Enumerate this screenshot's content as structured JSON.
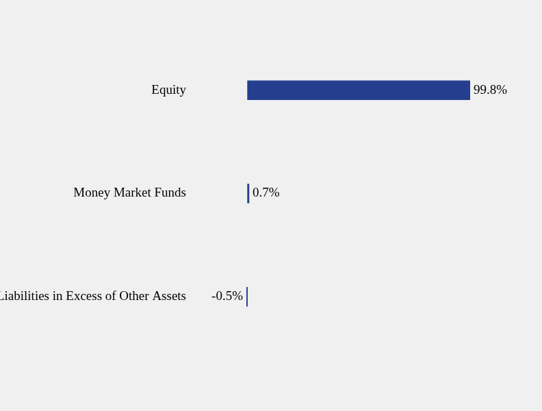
{
  "chart_data": {
    "type": "bar",
    "orientation": "horizontal",
    "categories": [
      "Equity",
      "Money Market Funds",
      "Liabilities in Excess of Other Assets"
    ],
    "values": [
      99.8,
      0.7,
      -0.5
    ],
    "value_labels": [
      "99.8%",
      "0.7%",
      "-0.5%"
    ],
    "color": "#253f8e",
    "data_labels": true,
    "tick_labels": "y",
    "grid": false
  }
}
